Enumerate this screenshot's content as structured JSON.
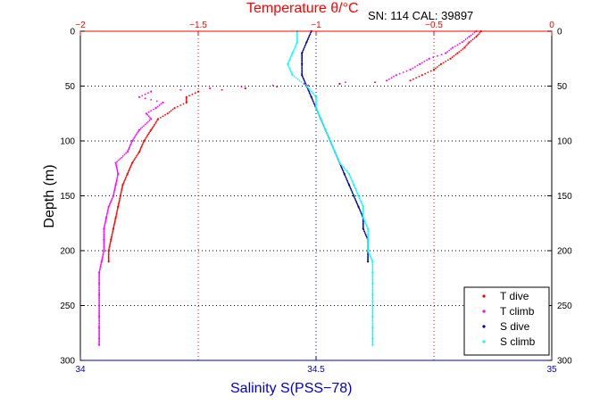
{
  "chart_data": {
    "type": "scatter",
    "header_note": "SN: 114  CAL: 39897",
    "ylabel": "Depth (m)",
    "ylim": [
      0,
      300
    ],
    "y_reversed": true,
    "y_ticks": [
      "0",
      "50",
      "100",
      "150",
      "200",
      "250",
      "300"
    ],
    "top_axis": {
      "label": "Temperature θ/°C",
      "range": [
        -2,
        0
      ],
      "ticks": [
        "−2",
        "−1.5",
        "−1",
        "−0.5",
        "0"
      ],
      "color": "#ff0000"
    },
    "bottom_axis": {
      "label": "Salinity S(PSS−78)",
      "range": [
        34,
        35
      ],
      "ticks": [
        "34",
        "34.5",
        "35"
      ],
      "color": "#0000cc"
    },
    "grid": true,
    "legend_position": "bottom-right",
    "series": [
      {
        "name": "T dive",
        "axis": "temperature",
        "color": "#ff0000",
        "points": [
          [
            -0.3,
            0
          ],
          [
            -0.32,
            5
          ],
          [
            -0.35,
            10
          ],
          [
            -0.37,
            15
          ],
          [
            -0.4,
            20
          ],
          [
            -0.43,
            25
          ],
          [
            -0.47,
            30
          ],
          [
            -0.5,
            35
          ],
          [
            -0.55,
            40
          ],
          [
            -0.6,
            45
          ],
          [
            -0.9,
            48
          ],
          [
            -1.3,
            52
          ],
          [
            -1.5,
            55
          ],
          [
            -1.55,
            60
          ],
          [
            -1.55,
            65
          ],
          [
            -1.6,
            70
          ],
          [
            -1.63,
            75
          ],
          [
            -1.67,
            80
          ],
          [
            -1.7,
            90
          ],
          [
            -1.73,
            100
          ],
          [
            -1.75,
            110
          ],
          [
            -1.78,
            120
          ],
          [
            -1.8,
            130
          ],
          [
            -1.82,
            140
          ],
          [
            -1.83,
            150
          ],
          [
            -1.84,
            160
          ],
          [
            -1.85,
            170
          ],
          [
            -1.86,
            180
          ],
          [
            -1.87,
            190
          ],
          [
            -1.88,
            200
          ],
          [
            -1.88,
            210
          ]
        ]
      },
      {
        "name": "T climb",
        "axis": "temperature",
        "color": "#ff00ff",
        "points": [
          [
            -0.32,
            0
          ],
          [
            -0.35,
            5
          ],
          [
            -0.38,
            10
          ],
          [
            -0.42,
            15
          ],
          [
            -0.45,
            20
          ],
          [
            -0.52,
            25
          ],
          [
            -0.56,
            30
          ],
          [
            -0.6,
            35
          ],
          [
            -0.66,
            40
          ],
          [
            -0.7,
            45
          ],
          [
            -1.05,
            48
          ],
          [
            -1.45,
            52
          ],
          [
            -1.7,
            55
          ],
          [
            -1.75,
            60
          ],
          [
            -1.65,
            65
          ],
          [
            -1.68,
            70
          ],
          [
            -1.72,
            75
          ],
          [
            -1.7,
            80
          ],
          [
            -1.75,
            90
          ],
          [
            -1.78,
            100
          ],
          [
            -1.8,
            110
          ],
          [
            -1.85,
            120
          ],
          [
            -1.84,
            130
          ],
          [
            -1.85,
            140
          ],
          [
            -1.86,
            150
          ],
          [
            -1.88,
            160
          ],
          [
            -1.89,
            170
          ],
          [
            -1.9,
            180
          ],
          [
            -1.9,
            190
          ],
          [
            -1.9,
            200
          ],
          [
            -1.91,
            210
          ],
          [
            -1.92,
            220
          ],
          [
            -1.92,
            230
          ],
          [
            -1.92,
            240
          ],
          [
            -1.92,
            250
          ],
          [
            -1.92,
            260
          ],
          [
            -1.92,
            270
          ],
          [
            -1.92,
            280
          ],
          [
            -1.92,
            286
          ]
        ]
      },
      {
        "name": "S dive",
        "axis": "salinity",
        "color": "#000099",
        "points": [
          [
            34.49,
            0
          ],
          [
            34.48,
            10
          ],
          [
            34.47,
            20
          ],
          [
            34.47,
            30
          ],
          [
            34.47,
            40
          ],
          [
            34.48,
            50
          ],
          [
            34.49,
            60
          ],
          [
            34.5,
            70
          ],
          [
            34.51,
            80
          ],
          [
            34.52,
            90
          ],
          [
            34.53,
            100
          ],
          [
            34.54,
            110
          ],
          [
            34.55,
            120
          ],
          [
            34.56,
            130
          ],
          [
            34.57,
            140
          ],
          [
            34.58,
            150
          ],
          [
            34.59,
            160
          ],
          [
            34.6,
            170
          ],
          [
            34.6,
            180
          ],
          [
            34.61,
            190
          ],
          [
            34.61,
            200
          ],
          [
            34.61,
            210
          ]
        ]
      },
      {
        "name": "S climb",
        "axis": "salinity",
        "color": "#00ffff",
        "points": [
          [
            34.46,
            0
          ],
          [
            34.46,
            10
          ],
          [
            34.45,
            20
          ],
          [
            34.44,
            30
          ],
          [
            34.45,
            40
          ],
          [
            34.48,
            50
          ],
          [
            34.5,
            60
          ],
          [
            34.5,
            70
          ],
          [
            34.51,
            80
          ],
          [
            34.52,
            90
          ],
          [
            34.53,
            100
          ],
          [
            34.54,
            110
          ],
          [
            34.55,
            120
          ],
          [
            34.57,
            130
          ],
          [
            34.58,
            140
          ],
          [
            34.59,
            150
          ],
          [
            34.6,
            160
          ],
          [
            34.6,
            170
          ],
          [
            34.61,
            180
          ],
          [
            34.61,
            190
          ],
          [
            34.61,
            200
          ],
          [
            34.62,
            210
          ],
          [
            34.62,
            220
          ],
          [
            34.62,
            230
          ],
          [
            34.62,
            240
          ],
          [
            34.62,
            250
          ],
          [
            34.62,
            260
          ],
          [
            34.62,
            270
          ],
          [
            34.62,
            280
          ],
          [
            34.62,
            286
          ]
        ]
      }
    ]
  }
}
